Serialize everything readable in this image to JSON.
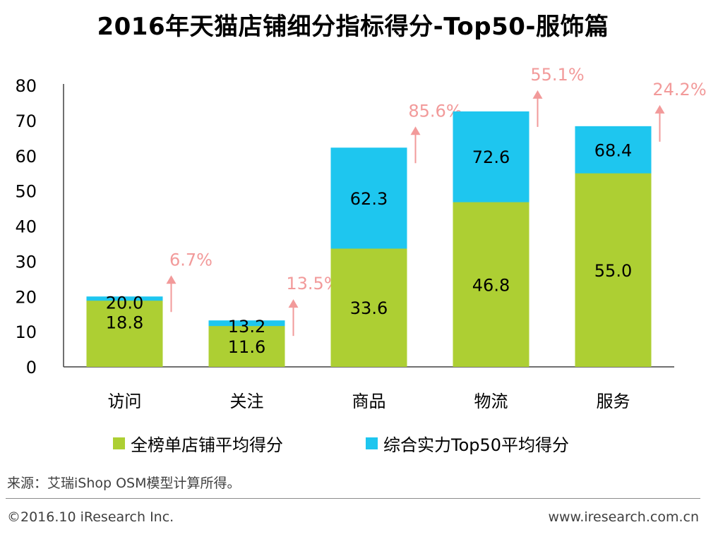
{
  "header": {
    "title": "2016年天猫店铺细分指标得分-Top50-服饰篇"
  },
  "colors": {
    "green": "#adcf33",
    "blue": "#1ec6ef",
    "growth": "#f29a9a",
    "axis": "#404040"
  },
  "chart_data": {
    "type": "bar",
    "stacked_overlay": true,
    "title": "2016年天猫店铺细分指标得分-Top50-服饰篇",
    "categories": [
      "访问",
      "关注",
      "商品",
      "物流",
      "服务"
    ],
    "ylim": [
      0,
      80
    ],
    "yticks": [
      0,
      10,
      20,
      30,
      40,
      50,
      60,
      70,
      80
    ],
    "grid": false,
    "legend_position": "bottom",
    "series": [
      {
        "name": "全榜单店铺平均得分",
        "values": [
          18.8,
          11.6,
          33.6,
          46.8,
          55.0
        ],
        "labels": [
          "18.8",
          "11.6",
          "33.6",
          "46.8",
          "55.0"
        ]
      },
      {
        "name": "综合实力Top50平均得分",
        "values": [
          20.0,
          13.2,
          62.3,
          72.6,
          68.4
        ],
        "labels": [
          "20.0",
          "13.2",
          "62.3",
          "72.6",
          "68.4"
        ]
      }
    ],
    "growth_labels": [
      "6.7%",
      "13.5%",
      "85.6%",
      "55.1%",
      "24.2%"
    ]
  },
  "footer": {
    "source": "来源：艾瑞iShop OSM模型计算所得。",
    "copyright": "©2016.10 iResearch Inc.",
    "website": "www.iresearch.com.cn"
  }
}
